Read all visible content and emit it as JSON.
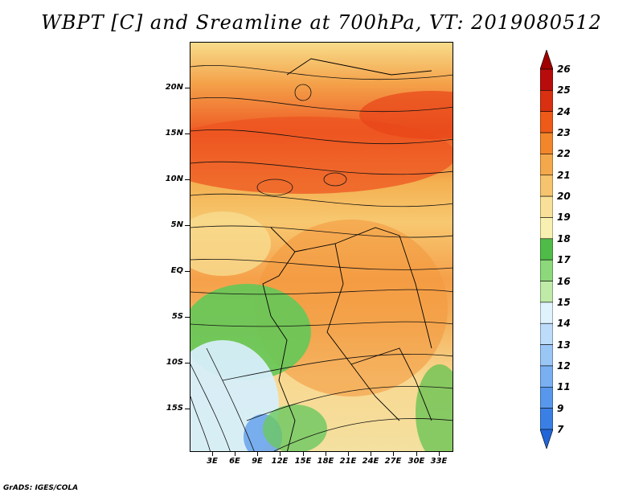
{
  "title": "WBPT [C] and Sreamline at 700hPa, VT: 2019080512",
  "footer": "GrADS: IGES/COLA",
  "lat_labels": [
    "20N",
    "15N",
    "10N",
    "5N",
    "EQ",
    "5S",
    "10S",
    "15S"
  ],
  "lon_labels": [
    "3E",
    "6E",
    "9E",
    "12E",
    "15E",
    "18E",
    "21E",
    "24E",
    "27E",
    "30E",
    "33E"
  ],
  "colorbar": {
    "labels": [
      "7",
      "9",
      "11",
      "12",
      "13",
      "14",
      "15",
      "16",
      "17",
      "18",
      "19",
      "20",
      "21",
      "22",
      "23",
      "24",
      "25",
      "26"
    ],
    "colors": [
      "#2166d8",
      "#3a80e4",
      "#5898ec",
      "#78b0f2",
      "#9ac6f6",
      "#bcdcfa",
      "#e0f2fc",
      "#bfeaa8",
      "#8cd87a",
      "#50bc48",
      "#f8f0b0",
      "#f8e098",
      "#f6c46e",
      "#f4a84c",
      "#f2862a",
      "#ee5a18",
      "#d83010",
      "#b80c0c",
      "#a00000"
    ]
  }
}
